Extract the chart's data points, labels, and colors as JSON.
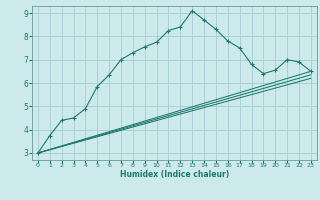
{
  "title": "",
  "xlabel": "Humidex (Indice chaleur)",
  "xlim": [
    -0.5,
    23.5
  ],
  "ylim": [
    2.7,
    9.3
  ],
  "yticks": [
    3,
    4,
    5,
    6,
    7,
    8,
    9
  ],
  "xticks": [
    0,
    1,
    2,
    3,
    4,
    5,
    6,
    7,
    8,
    9,
    10,
    11,
    12,
    13,
    14,
    15,
    16,
    17,
    18,
    19,
    20,
    21,
    22,
    23
  ],
  "background_color": "#cce9ec",
  "grid_color": "#aad0d6",
  "line_color": "#1e7a6e",
  "line1_x": [
    0,
    1,
    2,
    3,
    4,
    5,
    6,
    7,
    8,
    9,
    10,
    11,
    12,
    13,
    14,
    15,
    16,
    17,
    18,
    19,
    20,
    21,
    22,
    23
  ],
  "line1_y": [
    3.0,
    3.75,
    4.4,
    4.5,
    4.9,
    5.85,
    6.35,
    7.0,
    7.3,
    7.55,
    7.75,
    8.25,
    8.4,
    9.1,
    8.7,
    8.3,
    7.8,
    7.5,
    6.8,
    6.4,
    6.55,
    7.0,
    6.9,
    6.5
  ],
  "line2_x": [
    0,
    23
  ],
  "line2_y": [
    3.0,
    6.5
  ],
  "line3_x": [
    0,
    23
  ],
  "line3_y": [
    3.0,
    6.35
  ],
  "line4_x": [
    0,
    23
  ],
  "line4_y": [
    3.0,
    6.2
  ]
}
